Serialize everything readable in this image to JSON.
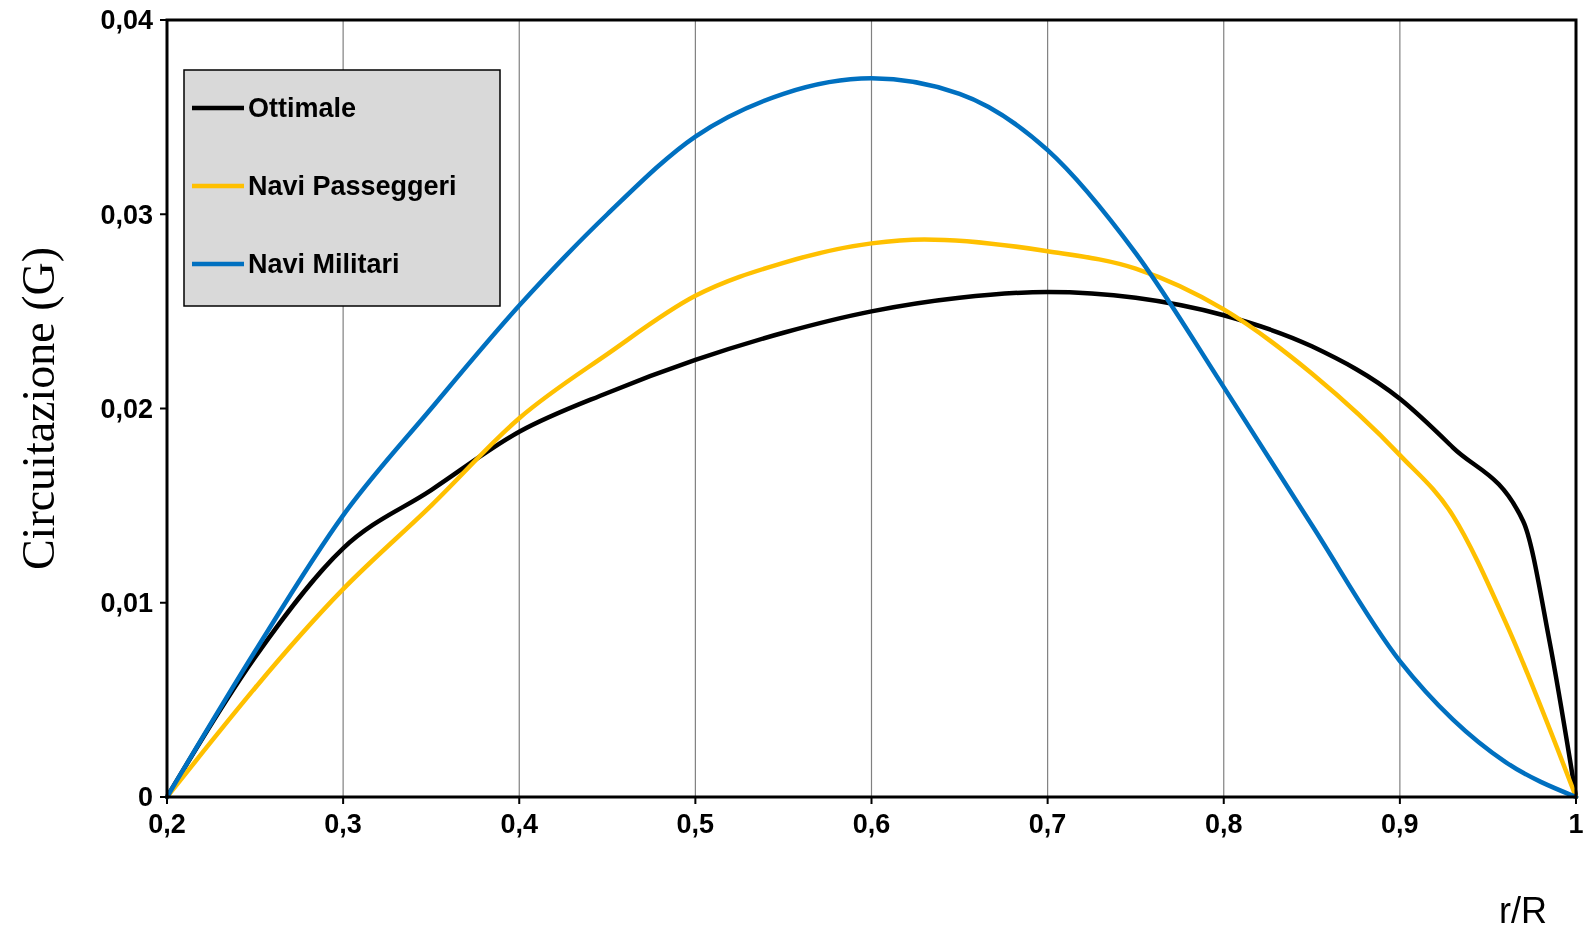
{
  "chart_data": {
    "type": "line",
    "xlabel": "r/R",
    "ylabel": "Circuitazione (G)",
    "xlim": [
      0.2,
      1
    ],
    "xticks": [
      {
        "value": 0.2,
        "label": "0,2"
      },
      {
        "value": 0.3,
        "label": "0,3"
      },
      {
        "value": 0.4,
        "label": "0,4"
      },
      {
        "value": 0.5,
        "label": "0,5"
      },
      {
        "value": 0.6,
        "label": "0,6"
      },
      {
        "value": 0.7,
        "label": "0,7"
      },
      {
        "value": 0.8,
        "label": "0,8"
      },
      {
        "value": 0.9,
        "label": "0,9"
      },
      1
    ],
    "ylim": [
      0,
      0.04
    ],
    "yticks": [
      0,
      {
        "value": 0.01,
        "label": "0,01"
      },
      {
        "value": 0.02,
        "label": "0,02"
      },
      {
        "value": 0.03,
        "label": "0,03"
      },
      {
        "value": 0.04,
        "label": "0,04"
      }
    ],
    "grid": "x",
    "legend": "top left",
    "marker": "none",
    "line_style": "solid",
    "series": [
      {
        "name": "Ottimale",
        "color": "#000000",
        "x": [
          0.2,
          0.25,
          0.3,
          0.35,
          0.4,
          0.45,
          0.5,
          0.55,
          0.6,
          0.65,
          0.7,
          0.75,
          0.8,
          0.85,
          0.9,
          0.93,
          0.97,
          0.985,
          1
        ],
        "values": [
          0,
          0.0072,
          0.0128,
          0.0158,
          0.0188,
          0.0208,
          0.0225,
          0.0239,
          0.025,
          0.0257,
          0.026,
          0.0257,
          0.0248,
          0.0232,
          0.0205,
          0.018,
          0.0142,
          0.008,
          0
        ]
      },
      {
        "name": "Navi Passeggeri",
        "color": "#ffc000",
        "x": [
          0.2,
          0.3,
          0.35,
          0.4,
          0.45,
          0.5,
          0.55,
          0.6,
          0.63,
          0.7,
          0.75,
          0.8,
          0.85,
          0.9,
          0.93,
          0.96,
          1
        ],
        "values": [
          0,
          0.0107,
          0.015,
          0.0195,
          0.0228,
          0.0258,
          0.0275,
          0.0285,
          0.0287,
          0.0281,
          0.0272,
          0.0251,
          0.0218,
          0.0176,
          0.0145,
          0.009,
          0
        ]
      },
      {
        "name": "Navi Militari",
        "color": "#0070c0",
        "x": [
          0.2,
          0.25,
          0.3,
          0.35,
          0.4,
          0.45,
          0.5,
          0.55,
          0.6,
          0.65,
          0.7,
          0.75,
          0.8,
          0.85,
          0.9,
          0.93,
          0.96,
          1
        ],
        "values": [
          0,
          0.0075,
          0.0145,
          0.02,
          0.0253,
          0.03,
          0.034,
          0.0362,
          0.037,
          0.0362,
          0.0333,
          0.028,
          0.0211,
          0.014,
          0.007,
          0.004,
          0.0018,
          0
        ]
      }
    ]
  }
}
